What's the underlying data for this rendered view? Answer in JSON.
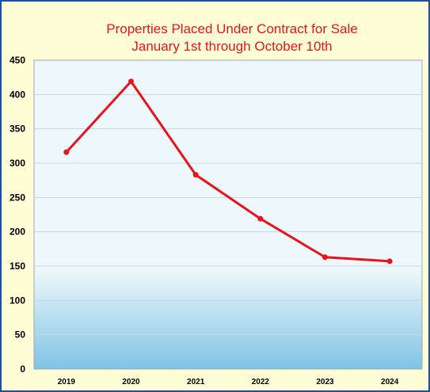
{
  "chart_data": {
    "type": "line",
    "title": [
      "Properties Placed Under Contract for Sale",
      "January 1st through October 10th"
    ],
    "categories": [
      "2019",
      "2020",
      "2021",
      "2022",
      "2023",
      "2024"
    ],
    "series": [
      {
        "values": [
          316,
          419,
          283,
          219,
          163,
          157
        ]
      }
    ],
    "ylim": [
      0,
      450
    ],
    "yticks": [
      0,
      50,
      100,
      150,
      200,
      250,
      300,
      350,
      400,
      450
    ],
    "grid": true,
    "colors": {
      "line": "#e8141c",
      "title": "#e8141c",
      "frame_border": "#1f4e9c",
      "frame_background": "#fffdd6",
      "plot_top": "#eef7fb",
      "plot_bottom": "#7fc4e6",
      "gridline": "#c9d9df"
    }
  }
}
